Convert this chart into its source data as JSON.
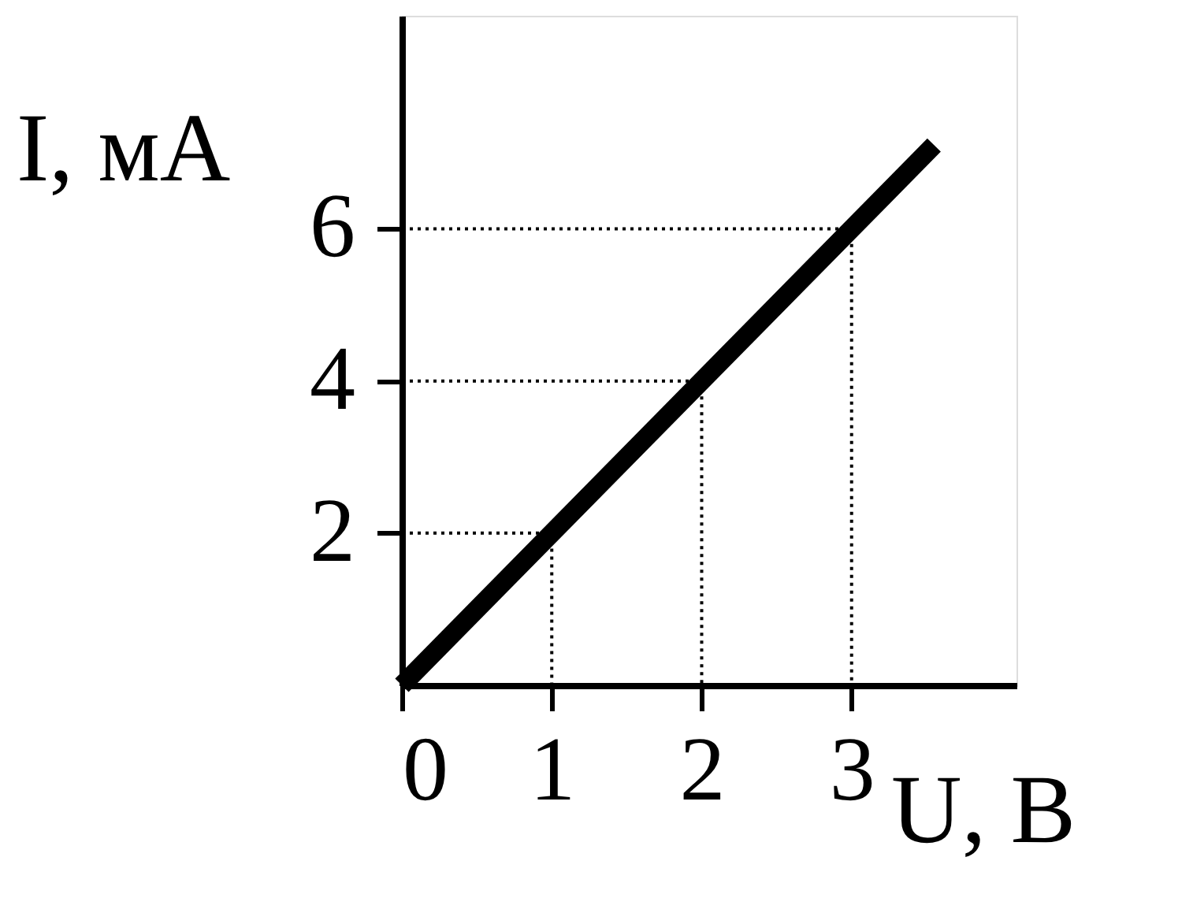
{
  "chart_data": {
    "type": "line",
    "xlabel": "U, В",
    "ylabel": "I, мА",
    "xlim": [
      0,
      4.1
    ],
    "ylim": [
      0,
      8.8
    ],
    "xticks": [
      0,
      1,
      2,
      3
    ],
    "yticks": [
      2,
      4,
      6
    ],
    "marker": "none",
    "series": [
      {
        "color": "#000000",
        "line_style": "solid",
        "x": [
          0,
          3.55
        ],
        "values": [
          0,
          7.1
        ]
      },
      {
        "color": "#000000",
        "line_style": "dotted",
        "x": [
          0,
          1,
          1
        ],
        "values": [
          2,
          2,
          0
        ]
      },
      {
        "color": "#000000",
        "line_style": "dotted",
        "x": [
          0,
          2,
          2
        ],
        "values": [
          4,
          4,
          0
        ]
      },
      {
        "color": "#000000",
        "line_style": "dotted",
        "x": [
          0,
          3,
          3
        ],
        "values": [
          6,
          6,
          0
        ]
      }
    ]
  }
}
